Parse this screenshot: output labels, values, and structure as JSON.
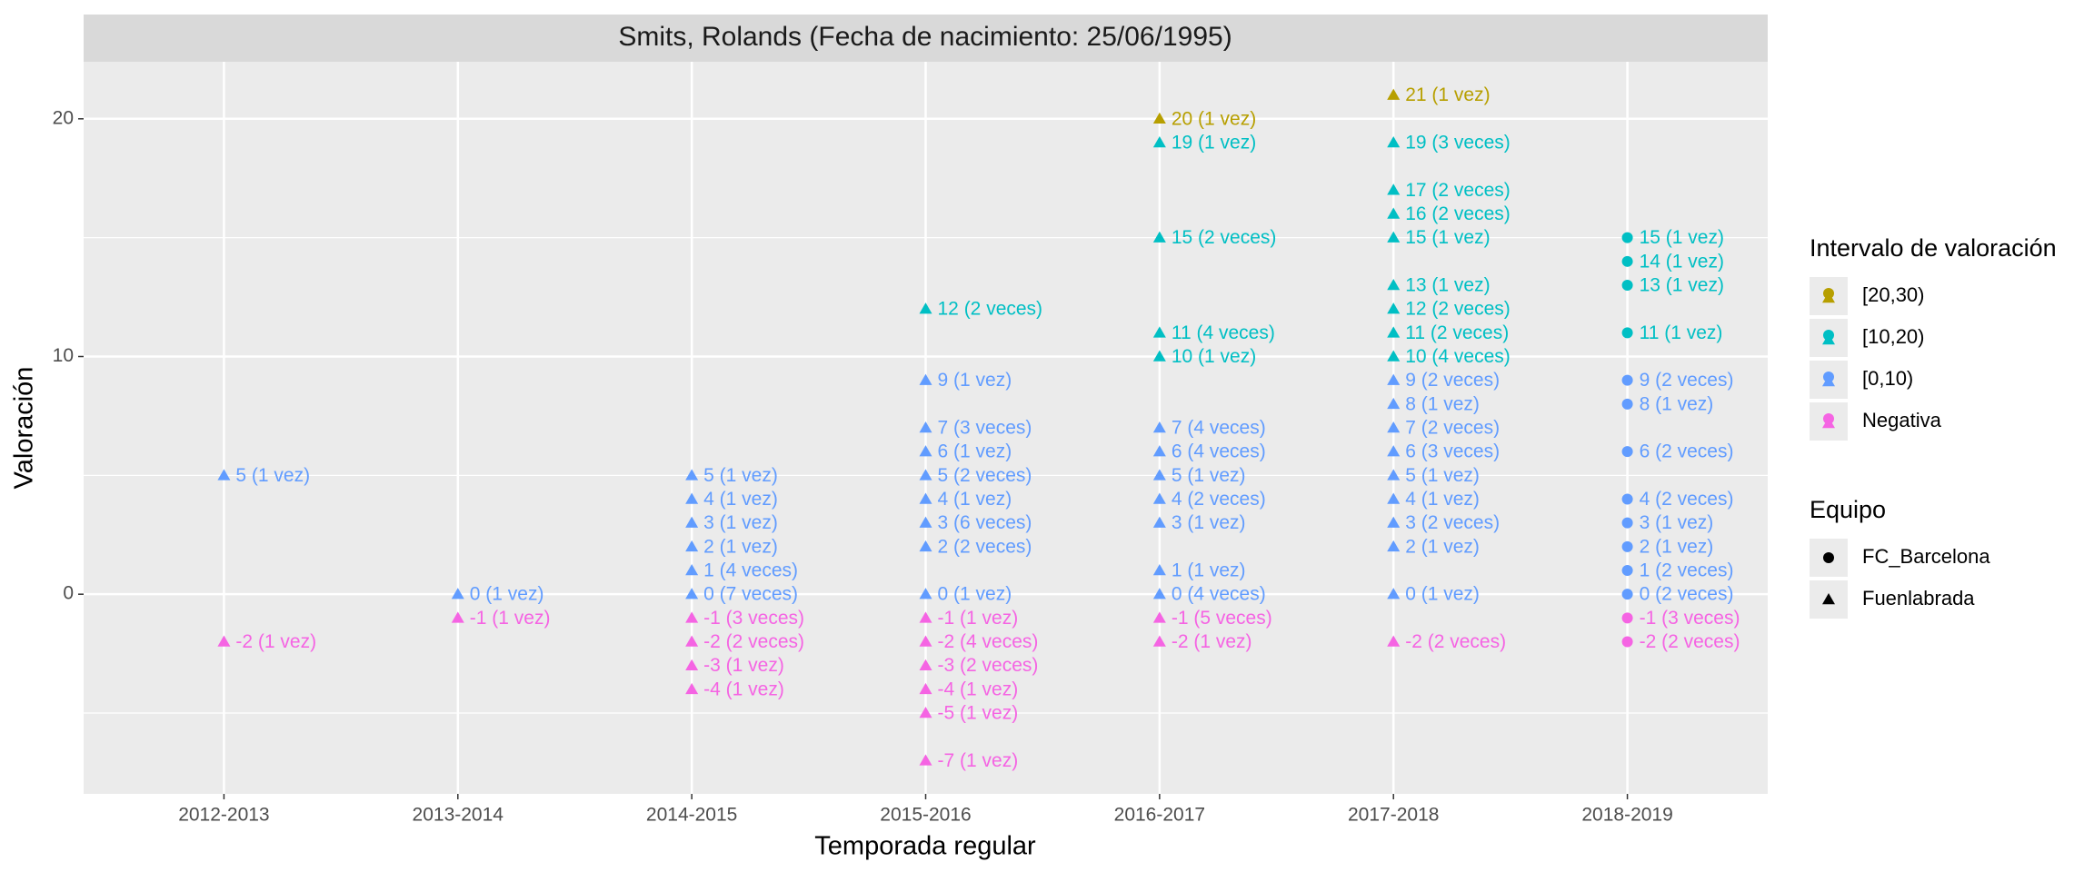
{
  "chart_data": {
    "type": "scatter",
    "title": "Smits, Rolands (Fecha de nacimiento: 25/06/1995)",
    "x_label": "Temporada regular",
    "y_label": "Valoración",
    "categories": [
      "2012-2013",
      "2013-2014",
      "2014-2015",
      "2015-2016",
      "2016-2017",
      "2017-2018",
      "2018-2019"
    ],
    "ylim": [
      -8.4,
      22.4
    ],
    "yticks": [
      0,
      10,
      20
    ],
    "minor_yticks": [
      -5,
      5,
      15
    ],
    "grid": true,
    "color_legend_title": "Intervalo de valoración",
    "shape_legend_title": "Equipo",
    "teams": [
      {
        "name": "FC_Barcelona",
        "shape": "circle"
      },
      {
        "name": "Fuenlabrada",
        "shape": "triangle"
      }
    ],
    "series": [
      {
        "name": "[20,30)",
        "color": "#b79f00",
        "x": [
          "2016-2017",
          "2017-2018"
        ],
        "values": [
          20,
          21
        ],
        "value_labels": [
          "20 (1 vez)",
          "21 (1 vez)"
        ],
        "shapes": [
          "triangle",
          "triangle"
        ]
      },
      {
        "name": "[10,20)",
        "color": "#00bfc4",
        "x": [
          "2015-2016",
          "2016-2017",
          "2016-2017",
          "2016-2017",
          "2016-2017",
          "2017-2018",
          "2017-2018",
          "2017-2018",
          "2017-2018",
          "2017-2018",
          "2017-2018",
          "2017-2018",
          "2017-2018",
          "2018-2019",
          "2018-2019",
          "2018-2019",
          "2018-2019"
        ],
        "values": [
          12,
          19,
          15,
          11,
          10,
          19,
          17,
          16,
          15,
          13,
          12,
          11,
          10,
          15,
          14,
          13,
          11
        ],
        "value_labels": [
          "12 (2 veces)",
          "19 (1 vez)",
          "15 (2 veces)",
          "11 (4 veces)",
          "10 (1 vez)",
          "19 (3 veces)",
          "17 (2 veces)",
          "16 (2 veces)",
          "15 (1 vez)",
          "13 (1 vez)",
          "12 (2 veces)",
          "11 (2 veces)",
          "10 (4 veces)",
          "15 (1 vez)",
          "14 (1 vez)",
          "13 (1 vez)",
          "11 (1 vez)"
        ],
        "shapes": [
          "triangle",
          "triangle",
          "triangle",
          "triangle",
          "triangle",
          "triangle",
          "triangle",
          "triangle",
          "triangle",
          "triangle",
          "triangle",
          "triangle",
          "triangle",
          "circle",
          "circle",
          "circle",
          "circle"
        ]
      },
      {
        "name": "[0,10)",
        "color": "#619cff",
        "x": [
          "2012-2013",
          "2013-2014",
          "2014-2015",
          "2014-2015",
          "2014-2015",
          "2014-2015",
          "2014-2015",
          "2014-2015",
          "2015-2016",
          "2015-2016",
          "2015-2016",
          "2015-2016",
          "2015-2016",
          "2015-2016",
          "2015-2016",
          "2015-2016",
          "2016-2017",
          "2016-2017",
          "2016-2017",
          "2016-2017",
          "2016-2017",
          "2016-2017",
          "2016-2017",
          "2017-2018",
          "2017-2018",
          "2017-2018",
          "2017-2018",
          "2017-2018",
          "2017-2018",
          "2017-2018",
          "2017-2018",
          "2017-2018",
          "2018-2019",
          "2018-2019",
          "2018-2019",
          "2018-2019",
          "2018-2019",
          "2018-2019",
          "2018-2019",
          "2018-2019"
        ],
        "values": [
          5,
          0,
          5,
          4,
          3,
          2,
          1,
          0,
          9,
          7,
          6,
          5,
          4,
          3,
          2,
          0,
          7,
          6,
          5,
          4,
          3,
          1,
          0,
          9,
          8,
          7,
          6,
          5,
          4,
          3,
          2,
          0,
          9,
          8,
          6,
          4,
          3,
          2,
          1,
          0
        ],
        "value_labels": [
          "5 (1 vez)",
          "0 (1 vez)",
          "5 (1 vez)",
          "4 (1 vez)",
          "3 (1 vez)",
          "2 (1 vez)",
          "1 (4 veces)",
          "0 (7 veces)",
          "9 (1 vez)",
          "7 (3 veces)",
          "6 (1 vez)",
          "5 (2 veces)",
          "4 (1 vez)",
          "3 (6 veces)",
          "2 (2 veces)",
          "0 (1 vez)",
          "7 (4 veces)",
          "6 (4 veces)",
          "5 (1 vez)",
          "4 (2 veces)",
          "3 (1 vez)",
          "1 (1 vez)",
          "0 (4 veces)",
          "9 (2 veces)",
          "8 (1 vez)",
          "7 (2 veces)",
          "6 (3 veces)",
          "5 (1 vez)",
          "4 (1 vez)",
          "3 (2 veces)",
          "2 (1 vez)",
          "0 (1 vez)",
          "9 (2 veces)",
          "8 (1 vez)",
          "6 (2 veces)",
          "4 (2 veces)",
          "3 (1 vez)",
          "2 (1 vez)",
          "1 (2 veces)",
          "0 (2 veces)"
        ],
        "shapes": [
          "triangle",
          "triangle",
          "triangle",
          "triangle",
          "triangle",
          "triangle",
          "triangle",
          "triangle",
          "triangle",
          "triangle",
          "triangle",
          "triangle",
          "triangle",
          "triangle",
          "triangle",
          "triangle",
          "triangle",
          "triangle",
          "triangle",
          "triangle",
          "triangle",
          "triangle",
          "triangle",
          "triangle",
          "triangle",
          "triangle",
          "triangle",
          "triangle",
          "triangle",
          "triangle",
          "triangle",
          "triangle",
          "circle",
          "circle",
          "circle",
          "circle",
          "circle",
          "circle",
          "circle",
          "circle"
        ]
      },
      {
        "name": "Negativa",
        "color": "#f564e3",
        "x": [
          "2012-2013",
          "2013-2014",
          "2014-2015",
          "2014-2015",
          "2014-2015",
          "2014-2015",
          "2015-2016",
          "2015-2016",
          "2015-2016",
          "2015-2016",
          "2015-2016",
          "2015-2016",
          "2016-2017",
          "2016-2017",
          "2017-2018",
          "2018-2019",
          "2018-2019"
        ],
        "values": [
          -2,
          -1,
          -1,
          -2,
          -3,
          -4,
          -1,
          -2,
          -3,
          -4,
          -5,
          -7,
          -1,
          -2,
          -2,
          -1,
          -2
        ],
        "value_labels": [
          "-2 (1 vez)",
          "-1 (1 vez)",
          "-1 (3 veces)",
          "-2 (2 veces)",
          "-3 (1 vez)",
          "-4 (1 vez)",
          "-1 (1 vez)",
          "-2 (4 veces)",
          "-3 (2 veces)",
          "-4 (1 vez)",
          "-5 (1 vez)",
          "-7 (1 vez)",
          "-1 (5 veces)",
          "-2 (1 vez)",
          "-2 (2 veces)",
          "-1 (3 veces)",
          "-2 (2 veces)"
        ],
        "shapes": [
          "triangle",
          "triangle",
          "triangle",
          "triangle",
          "triangle",
          "triangle",
          "triangle",
          "triangle",
          "triangle",
          "triangle",
          "triangle",
          "triangle",
          "triangle",
          "triangle",
          "triangle",
          "circle",
          "circle"
        ]
      }
    ]
  }
}
